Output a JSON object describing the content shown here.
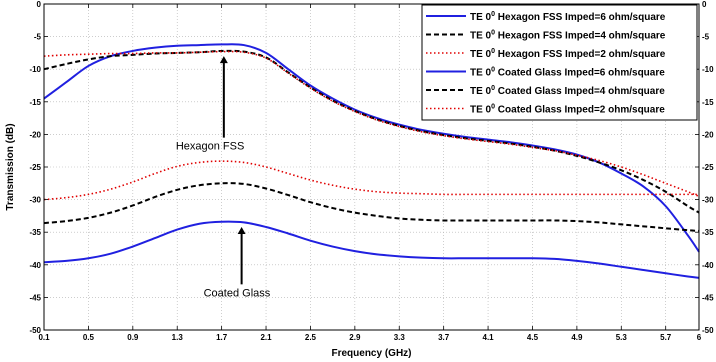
{
  "chart_data": {
    "type": "line",
    "xlabel": "Frequency (GHz)",
    "ylabel": "Transmission (dB)",
    "xlim": [
      0.1,
      6
    ],
    "ylim": [
      -50,
      0
    ],
    "x_ticks": [
      0.1,
      0.5,
      0.9,
      1.3,
      1.7,
      2.1,
      2.5,
      2.9,
      3.3,
      3.7,
      4.1,
      4.5,
      4.9,
      5.3,
      5.7,
      6
    ],
    "x_tick_labels": [
      "0.1",
      "0.5",
      "0.9",
      "1.3",
      "1.7",
      "2.1",
      "2.5",
      "2.9",
      "3.3",
      "3.7",
      "4.1",
      "4.5",
      "4.9",
      "5.3",
      "5.7",
      "6"
    ],
    "y_ticks": [
      0,
      -5,
      -10,
      -15,
      -20,
      -25,
      -30,
      -35,
      -40,
      -45,
      -50
    ],
    "y_tick_labels": [
      "0",
      "-5",
      "-10",
      "-15",
      "-20",
      "-25",
      "-30",
      "-35",
      "-40",
      "-45",
      "-50"
    ],
    "grid": true,
    "legend_position": "top-right",
    "series": [
      {
        "legend_prefix": "TE 0",
        "legend_sup": "0",
        "legend_suffix": " Hexagon FSS Imped=6 ohm/square",
        "color": "#2020e0",
        "dash": "solid",
        "x": [
          0.1,
          0.3,
          0.5,
          0.7,
          0.9,
          1.1,
          1.3,
          1.5,
          1.7,
          1.9,
          2.1,
          2.3,
          2.5,
          2.7,
          2.9,
          3.1,
          3.3,
          3.5,
          3.7,
          3.9,
          4.1,
          4.3,
          4.5,
          4.7,
          4.9,
          5.1,
          5.3,
          5.5,
          5.7,
          5.9,
          6.0
        ],
        "y": [
          -14.5,
          -12.0,
          -9.5,
          -8.0,
          -7.2,
          -6.7,
          -6.4,
          -6.3,
          -6.2,
          -6.3,
          -7.5,
          -10.0,
          -12.5,
          -14.5,
          -16.2,
          -17.5,
          -18.5,
          -19.3,
          -19.9,
          -20.4,
          -20.8,
          -21.2,
          -21.7,
          -22.3,
          -23.1,
          -24.3,
          -26.0,
          -28.0,
          -31.0,
          -35.5,
          -38.0
        ]
      },
      {
        "legend_prefix": "TE 0",
        "legend_sup": "0",
        "legend_suffix": " Hexagon FSS Imped=4 ohm/square",
        "color": "#000000",
        "dash": "dashed",
        "x": [
          0.1,
          0.3,
          0.5,
          0.7,
          0.9,
          1.1,
          1.3,
          1.5,
          1.7,
          1.9,
          2.1,
          2.3,
          2.5,
          2.7,
          2.9,
          3.1,
          3.3,
          3.5,
          3.7,
          3.9,
          4.1,
          4.3,
          4.5,
          4.7,
          4.9,
          5.1,
          5.3,
          5.5,
          5.7,
          5.9,
          6.0
        ],
        "y": [
          -10.0,
          -9.2,
          -8.5,
          -8.0,
          -7.8,
          -7.6,
          -7.5,
          -7.4,
          -7.2,
          -7.3,
          -8.2,
          -10.5,
          -12.8,
          -14.8,
          -16.4,
          -17.7,
          -18.7,
          -19.5,
          -20.1,
          -20.6,
          -21.0,
          -21.4,
          -21.9,
          -22.5,
          -23.3,
          -24.3,
          -25.5,
          -27.0,
          -28.8,
          -31.0,
          -32.0
        ]
      },
      {
        "legend_prefix": "TE 0",
        "legend_sup": "0",
        "legend_suffix": " Hexagon FSS Imped=2 ohm/square",
        "color": "#e00000",
        "dash": "dotted",
        "x": [
          0.1,
          0.3,
          0.5,
          0.7,
          0.9,
          1.1,
          1.3,
          1.5,
          1.7,
          1.9,
          2.1,
          2.3,
          2.5,
          2.7,
          2.9,
          3.1,
          3.3,
          3.5,
          3.7,
          3.9,
          4.1,
          4.3,
          4.5,
          4.7,
          4.9,
          5.1,
          5.3,
          5.5,
          5.7,
          5.9,
          6.0
        ],
        "y": [
          -8.0,
          -7.8,
          -7.7,
          -7.6,
          -7.6,
          -7.5,
          -7.5,
          -7.4,
          -7.3,
          -7.4,
          -8.3,
          -10.6,
          -12.9,
          -14.9,
          -16.5,
          -17.8,
          -18.8,
          -19.6,
          -20.2,
          -20.7,
          -21.1,
          -21.5,
          -22.0,
          -22.5,
          -23.2,
          -24.0,
          -25.0,
          -26.2,
          -27.5,
          -28.8,
          -29.5
        ]
      },
      {
        "legend_prefix": "TE 0",
        "legend_sup": "0",
        "legend_suffix": " Coated Glass Imped=6 ohm/square",
        "color": "#2020e0",
        "dash": "solid",
        "x": [
          0.1,
          0.3,
          0.5,
          0.7,
          0.9,
          1.1,
          1.3,
          1.5,
          1.7,
          1.9,
          2.1,
          2.3,
          2.5,
          2.7,
          2.9,
          3.1,
          3.3,
          3.5,
          3.7,
          3.9,
          4.1,
          4.3,
          4.5,
          4.7,
          4.9,
          5.1,
          5.3,
          5.5,
          5.7,
          5.9,
          6.0
        ],
        "y": [
          -39.6,
          -39.4,
          -39.0,
          -38.3,
          -37.2,
          -35.9,
          -34.6,
          -33.7,
          -33.4,
          -33.5,
          -34.2,
          -35.2,
          -36.3,
          -37.2,
          -37.9,
          -38.4,
          -38.7,
          -38.9,
          -39.0,
          -39.0,
          -39.0,
          -39.0,
          -39.0,
          -39.1,
          -39.4,
          -39.8,
          -40.3,
          -40.8,
          -41.3,
          -41.8,
          -42.0
        ]
      },
      {
        "legend_prefix": "TE 0",
        "legend_sup": "0",
        "legend_suffix": " Coated Glass Imped=4 ohm/square",
        "color": "#000000",
        "dash": "dashed",
        "x": [
          0.1,
          0.3,
          0.5,
          0.7,
          0.9,
          1.1,
          1.3,
          1.5,
          1.7,
          1.9,
          2.1,
          2.3,
          2.5,
          2.7,
          2.9,
          3.1,
          3.3,
          3.5,
          3.7,
          3.9,
          4.1,
          4.3,
          4.5,
          4.7,
          4.9,
          5.1,
          5.3,
          5.5,
          5.7,
          5.9,
          6.0
        ],
        "y": [
          -33.6,
          -33.3,
          -32.8,
          -32.0,
          -30.9,
          -29.6,
          -28.5,
          -27.8,
          -27.5,
          -27.6,
          -28.3,
          -29.3,
          -30.4,
          -31.3,
          -32.0,
          -32.5,
          -32.9,
          -33.1,
          -33.2,
          -33.2,
          -33.2,
          -33.2,
          -33.2,
          -33.2,
          -33.3,
          -33.5,
          -33.8,
          -34.1,
          -34.4,
          -34.7,
          -34.8
        ]
      },
      {
        "legend_prefix": "TE 0",
        "legend_sup": "0",
        "legend_suffix": " Coated Glass Imped=2 ohm/square",
        "color": "#e00000",
        "dash": "dotted",
        "x": [
          0.1,
          0.3,
          0.5,
          0.7,
          0.9,
          1.1,
          1.3,
          1.5,
          1.7,
          1.9,
          2.1,
          2.3,
          2.5,
          2.7,
          2.9,
          3.1,
          3.3,
          3.5,
          3.7,
          3.9,
          4.1,
          4.3,
          4.5,
          4.7,
          4.9,
          5.1,
          5.3,
          5.5,
          5.7,
          5.9,
          6.0
        ],
        "y": [
          -30.0,
          -29.7,
          -29.2,
          -28.4,
          -27.3,
          -26.0,
          -24.9,
          -24.3,
          -24.1,
          -24.3,
          -25.0,
          -26.0,
          -27.0,
          -27.8,
          -28.4,
          -28.8,
          -29.0,
          -29.1,
          -29.2,
          -29.2,
          -29.2,
          -29.2,
          -29.2,
          -29.2,
          -29.2,
          -29.2,
          -29.2,
          -29.2,
          -29.2,
          -29.2,
          -29.2
        ]
      }
    ],
    "annotations": [
      {
        "text": "Hexagon FSS",
        "arrow_x": 1.72,
        "arrow_y_from": -20.5,
        "arrow_y_to": -8.0
      },
      {
        "text": "Coated Glass",
        "arrow_x": 1.88,
        "arrow_y_from": -43.0,
        "arrow_y_to": -34.2
      }
    ]
  }
}
